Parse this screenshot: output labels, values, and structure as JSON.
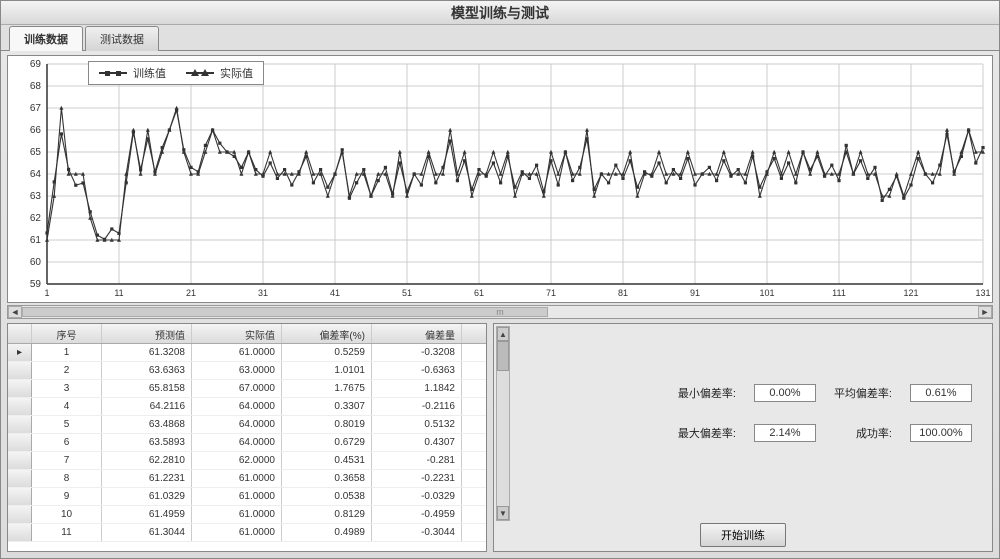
{
  "window": {
    "title": "模型训练与测试"
  },
  "tabs": [
    {
      "label": "训练数据",
      "active": true
    },
    {
      "label": "测试数据",
      "active": false
    }
  ],
  "chart": {
    "type": "line",
    "legend": {
      "series_a": "训练值",
      "series_b": "实际值"
    },
    "ylim": [
      59,
      69
    ],
    "yticks": [
      59,
      60,
      61,
      62,
      63,
      64,
      65,
      66,
      67,
      68,
      69
    ],
    "xticks": [
      1,
      11,
      21,
      31,
      41,
      51,
      61,
      71,
      81,
      91,
      101,
      111,
      121,
      131
    ],
    "x_max": 131,
    "grid_color": "#cccccc",
    "background_color": "#ffffff",
    "series": {
      "train": {
        "color": "#333333",
        "marker": "square",
        "values": [
          61.32,
          63.64,
          65.82,
          64.21,
          63.49,
          63.59,
          62.28,
          61.22,
          61.03,
          61.5,
          61.3,
          63.6,
          65.9,
          64.2,
          65.6,
          64.1,
          65.2,
          66.0,
          66.9,
          65.1,
          64.3,
          64.1,
          65.3,
          66.0,
          65.4,
          65.0,
          64.8,
          64.3,
          65.0,
          64.2,
          63.9,
          64.5,
          63.8,
          64.2,
          63.5,
          64.1,
          64.8,
          63.6,
          64.2,
          63.4,
          64.0,
          65.1,
          62.9,
          63.6,
          64.2,
          63.0,
          63.7,
          64.3,
          63.1,
          64.5,
          63.2,
          64.0,
          63.5,
          64.8,
          63.6,
          64.3,
          65.5,
          63.7,
          64.6,
          63.3,
          64.2,
          63.9,
          64.5,
          63.6,
          64.8,
          63.4,
          64.1,
          63.8,
          64.4,
          63.2,
          64.6,
          63.5,
          65.0,
          63.7,
          64.3,
          65.6,
          63.3,
          64.0,
          63.6,
          64.4,
          63.8,
          64.6,
          63.4,
          64.1,
          63.9,
          64.5,
          63.6,
          64.2,
          63.8,
          64.7,
          63.5,
          64.0,
          64.3,
          63.7,
          64.6,
          63.9,
          64.2,
          63.6,
          64.8,
          63.4,
          64.1,
          64.7,
          63.8,
          64.5,
          63.6,
          65.0,
          64.2,
          64.8,
          63.9,
          64.4,
          63.7,
          65.3,
          64.0,
          64.6,
          63.8,
          64.3,
          62.8,
          63.3,
          63.9,
          62.9,
          63.5,
          64.7,
          64.0,
          63.6,
          64.4,
          65.8,
          64.1,
          64.8,
          66.0,
          64.5,
          65.2
        ]
      },
      "actual": {
        "color": "#333333",
        "marker": "triangle",
        "values": [
          61.0,
          63.0,
          67.0,
          64.0,
          64.0,
          64.0,
          62.0,
          61.0,
          61.0,
          61.0,
          61.0,
          64.0,
          66.0,
          64.0,
          66.0,
          64.0,
          65.0,
          66.0,
          67.0,
          65.0,
          64.0,
          64.0,
          65.0,
          66.0,
          65.0,
          65.0,
          65.0,
          64.0,
          65.0,
          64.0,
          64.0,
          65.0,
          64.0,
          64.0,
          64.0,
          64.0,
          65.0,
          64.0,
          64.0,
          63.0,
          64.0,
          65.0,
          63.0,
          64.0,
          64.0,
          63.0,
          64.0,
          64.0,
          63.0,
          65.0,
          63.0,
          64.0,
          64.0,
          65.0,
          64.0,
          64.0,
          66.0,
          64.0,
          65.0,
          63.0,
          64.0,
          64.0,
          65.0,
          64.0,
          65.0,
          63.0,
          64.0,
          64.0,
          64.0,
          63.0,
          65.0,
          64.0,
          65.0,
          64.0,
          64.0,
          66.0,
          63.0,
          64.0,
          64.0,
          64.0,
          64.0,
          65.0,
          63.0,
          64.0,
          64.0,
          65.0,
          64.0,
          64.0,
          64.0,
          65.0,
          64.0,
          64.0,
          64.0,
          64.0,
          65.0,
          64.0,
          64.0,
          64.0,
          65.0,
          63.0,
          64.0,
          65.0,
          64.0,
          65.0,
          64.0,
          65.0,
          64.0,
          65.0,
          64.0,
          64.0,
          64.0,
          65.0,
          64.0,
          65.0,
          64.0,
          64.0,
          63.0,
          63.0,
          64.0,
          63.0,
          64.0,
          65.0,
          64.0,
          64.0,
          64.0,
          66.0,
          64.0,
          65.0,
          66.0,
          65.0,
          65.0
        ]
      }
    }
  },
  "table": {
    "columns": [
      "序号",
      "预测值",
      "实际值",
      "偏差率(%)",
      "偏差量"
    ],
    "rows": [
      [
        "1",
        "61.3208",
        "61.0000",
        "0.5259",
        "-0.3208"
      ],
      [
        "2",
        "63.6363",
        "63.0000",
        "1.0101",
        "-0.6363"
      ],
      [
        "3",
        "65.8158",
        "67.0000",
        "1.7675",
        "1.1842"
      ],
      [
        "4",
        "64.2116",
        "64.0000",
        "0.3307",
        "-0.2116"
      ],
      [
        "5",
        "63.4868",
        "64.0000",
        "0.8019",
        "0.5132"
      ],
      [
        "6",
        "63.5893",
        "64.0000",
        "0.6729",
        "0.4307"
      ],
      [
        "7",
        "62.2810",
        "62.0000",
        "0.4531",
        "-0.281"
      ],
      [
        "8",
        "61.2231",
        "61.0000",
        "0.3658",
        "-0.2231"
      ],
      [
        "9",
        "61.0329",
        "61.0000",
        "0.0538",
        "-0.0329"
      ],
      [
        "10",
        "61.4959",
        "61.0000",
        "0.8129",
        "-0.4959"
      ],
      [
        "11",
        "61.3044",
        "61.0000",
        "0.4989",
        "-0.3044"
      ]
    ]
  },
  "stats": {
    "min_rate_label": "最小偏差率:",
    "min_rate_value": "0.00%",
    "avg_rate_label": "平均偏差率:",
    "avg_rate_value": "0.61%",
    "max_rate_label": "最大偏差率:",
    "max_rate_value": "2.14%",
    "success_label": "成功率:",
    "success_value": "100.00%"
  },
  "buttons": {
    "start": "开始训练"
  },
  "hscroll_label": "m"
}
